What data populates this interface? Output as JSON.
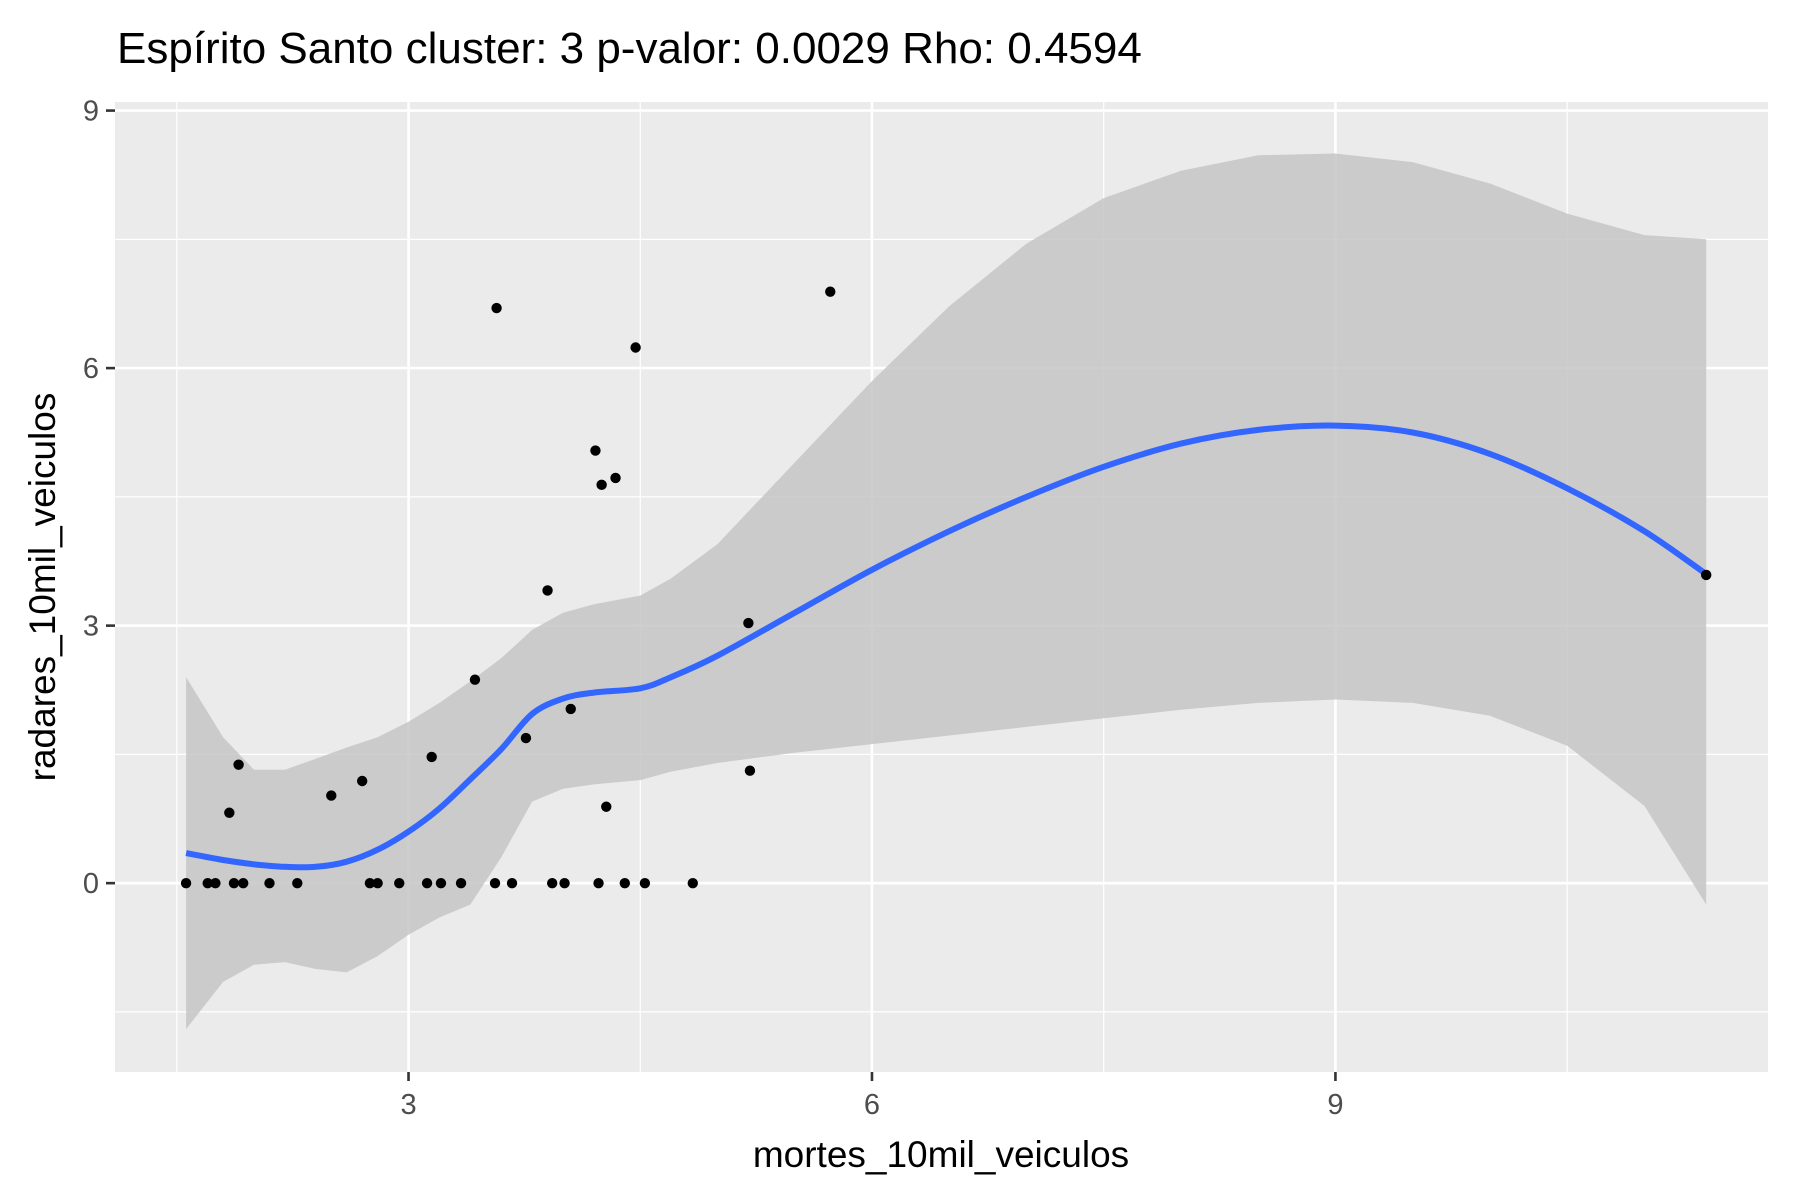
{
  "chart_data": {
    "type": "scatter",
    "title": "Espírito Santo cluster: 3 p-valor: 0.0029 Rho: 0.4594",
    "xlabel": "mortes_10mil_veiculos",
    "ylabel": "radares_10mil_veiculos",
    "xlim": [
      1.1,
      11.8
    ],
    "ylim": [
      -2.2,
      9.1
    ],
    "x_ticks": [
      3,
      6,
      9
    ],
    "y_ticks": [
      0,
      3,
      6,
      9
    ],
    "x_tick_labels": [
      "3",
      "6",
      "9"
    ],
    "y_tick_labels": [
      "0",
      "3",
      "6",
      "9"
    ],
    "grid": true,
    "colors": {
      "panel": "#ebebeb",
      "grid": "#ffffff",
      "points": "#000000",
      "smooth_line": "#3366ff",
      "confidence_band": "#c6c6c6"
    },
    "points": [
      {
        "x": 1.56,
        "y": 0.0
      },
      {
        "x": 1.7,
        "y": 0.0
      },
      {
        "x": 1.75,
        "y": 0.0
      },
      {
        "x": 1.84,
        "y": 0.82
      },
      {
        "x": 1.87,
        "y": 0.0
      },
      {
        "x": 1.9,
        "y": 1.38
      },
      {
        "x": 1.93,
        "y": 0.0
      },
      {
        "x": 2.1,
        "y": 0.0
      },
      {
        "x": 2.28,
        "y": 0.0
      },
      {
        "x": 2.5,
        "y": 1.02
      },
      {
        "x": 2.7,
        "y": 1.19
      },
      {
        "x": 2.75,
        "y": 0.0
      },
      {
        "x": 2.8,
        "y": 0.0
      },
      {
        "x": 2.94,
        "y": 0.0
      },
      {
        "x": 3.12,
        "y": 0.0
      },
      {
        "x": 3.15,
        "y": 1.47
      },
      {
        "x": 3.21,
        "y": 0.0
      },
      {
        "x": 3.34,
        "y": 0.0
      },
      {
        "x": 3.43,
        "y": 2.37
      },
      {
        "x": 3.56,
        "y": 0.0
      },
      {
        "x": 3.57,
        "y": 6.7
      },
      {
        "x": 3.67,
        "y": 0.0
      },
      {
        "x": 3.76,
        "y": 1.69
      },
      {
        "x": 3.9,
        "y": 3.41
      },
      {
        "x": 3.93,
        "y": 0.0
      },
      {
        "x": 4.01,
        "y": 0.0
      },
      {
        "x": 4.05,
        "y": 2.03
      },
      {
        "x": 4.21,
        "y": 5.04
      },
      {
        "x": 4.23,
        "y": 0.0
      },
      {
        "x": 4.25,
        "y": 4.64
      },
      {
        "x": 4.28,
        "y": 0.89
      },
      {
        "x": 4.34,
        "y": 4.72
      },
      {
        "x": 4.4,
        "y": 0.0
      },
      {
        "x": 4.47,
        "y": 6.24
      },
      {
        "x": 4.53,
        "y": 0.0
      },
      {
        "x": 4.84,
        "y": 0.0
      },
      {
        "x": 5.2,
        "y": 3.03
      },
      {
        "x": 5.21,
        "y": 1.31
      },
      {
        "x": 5.73,
        "y": 6.89
      },
      {
        "x": 11.4,
        "y": 3.59
      }
    ],
    "smooth": {
      "method": "loess",
      "x": [
        1.56,
        1.8,
        2.0,
        2.2,
        2.4,
        2.6,
        2.8,
        3.0,
        3.2,
        3.4,
        3.6,
        3.8,
        4.0,
        4.2,
        4.5,
        4.7,
        5.0,
        5.5,
        6.0,
        6.5,
        7.0,
        7.5,
        8.0,
        8.5,
        9.0,
        9.5,
        10.0,
        10.5,
        11.0,
        11.4
      ],
      "y": [
        0.35,
        0.27,
        0.22,
        0.19,
        0.19,
        0.25,
        0.39,
        0.6,
        0.87,
        1.21,
        1.56,
        1.97,
        2.15,
        2.22,
        2.27,
        2.4,
        2.65,
        3.15,
        3.65,
        4.1,
        4.5,
        4.85,
        5.12,
        5.28,
        5.33,
        5.25,
        5.0,
        4.6,
        4.1,
        3.6
      ],
      "lower": [
        -1.7,
        -1.15,
        -0.95,
        -0.92,
        -1.0,
        -1.04,
        -0.85,
        -0.6,
        -0.4,
        -0.25,
        0.3,
        0.95,
        1.1,
        1.15,
        1.2,
        1.3,
        1.4,
        1.52,
        1.62,
        1.72,
        1.82,
        1.92,
        2.02,
        2.1,
        2.14,
        2.1,
        1.95,
        1.6,
        0.9,
        -0.25
      ],
      "upper": [
        2.4,
        1.7,
        1.32,
        1.32,
        1.45,
        1.58,
        1.7,
        1.88,
        2.1,
        2.35,
        2.62,
        2.95,
        3.15,
        3.25,
        3.35,
        3.55,
        3.95,
        4.9,
        5.85,
        6.72,
        7.45,
        7.98,
        8.3,
        8.48,
        8.5,
        8.4,
        8.15,
        7.8,
        7.55,
        7.5
      ]
    }
  }
}
